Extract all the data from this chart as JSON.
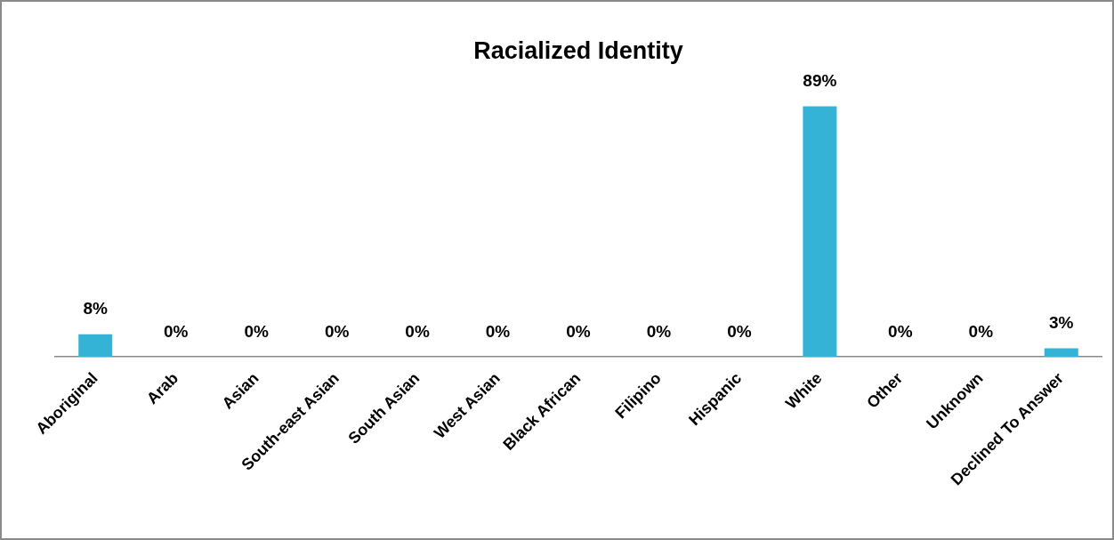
{
  "chart_data": {
    "type": "bar",
    "title": "Racialized Identity",
    "categories": [
      "Aboriginal",
      "Arab",
      "Asian",
      "South-east Asian",
      "South Asian",
      "West Asian",
      "Black African",
      "Filipino",
      "Hispanic",
      "White",
      "Other",
      "Unknown",
      "Declined To Answer"
    ],
    "values": [
      8,
      0,
      0,
      0,
      0,
      0,
      0,
      0,
      0,
      89,
      0,
      0,
      3
    ],
    "value_labels": [
      "8%",
      "0%",
      "0%",
      "0%",
      "0%",
      "0%",
      "0%",
      "0%",
      "0%",
      "89%",
      "0%",
      "0%",
      "3%"
    ],
    "color": "#35b3d6",
    "grid": false,
    "legend": false
  }
}
